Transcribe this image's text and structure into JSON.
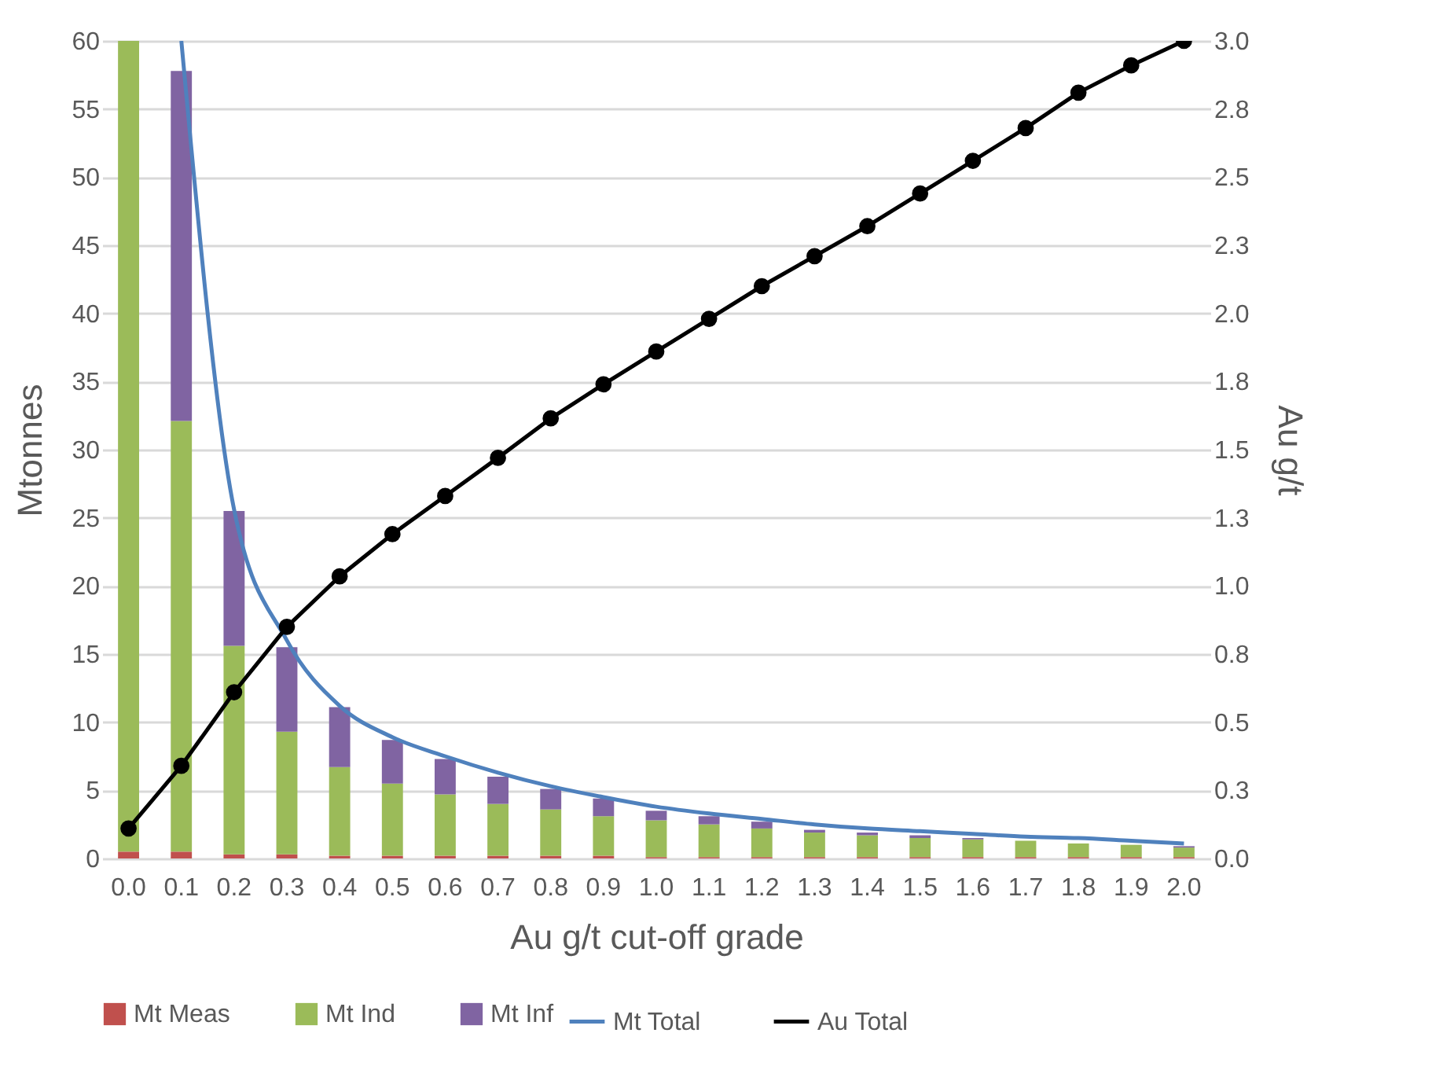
{
  "chart_data": {
    "type": "bar",
    "stacked": true,
    "xlabel": "Au g/t cut-off grade",
    "ylabel": "Mtonnes",
    "y2label": "Au g/t",
    "legend": "bottom",
    "grid": "y",
    "categories": [
      "0.0",
      "0.1",
      "0.2",
      "0.3",
      "0.4",
      "0.5",
      "0.6",
      "0.7",
      "0.8",
      "0.9",
      "1.0",
      "1.1",
      "1.2",
      "1.3",
      "1.4",
      "1.5",
      "1.6",
      "1.7",
      "1.8",
      "1.9",
      "2.0"
    ],
    "ylim": [
      0,
      60
    ],
    "yticks": [
      0,
      5,
      10,
      15,
      20,
      25,
      30,
      35,
      40,
      45,
      50,
      55,
      60
    ],
    "y2lim": [
      0,
      3
    ],
    "y2ticks": [
      {
        "value": 0,
        "label": "0.0"
      },
      {
        "value": 0.25,
        "label": "0.3"
      },
      {
        "value": 0.5,
        "label": "0.5"
      },
      {
        "value": 0.75,
        "label": "0.8"
      },
      {
        "value": 1,
        "label": "1.0"
      },
      {
        "value": 1.25,
        "label": "1.3"
      },
      {
        "value": 1.5,
        "label": "1.5"
      },
      {
        "value": 1.75,
        "label": "1.8"
      },
      {
        "value": 2,
        "label": "2.0"
      },
      {
        "value": 2.25,
        "label": "2.3"
      },
      {
        "value": 2.5,
        "label": "2.5"
      },
      {
        "value": 2.75,
        "label": "2.8"
      },
      {
        "value": 3,
        "label": "3.0"
      }
    ],
    "series": [
      {
        "name": "Mt Meas",
        "color": "#c0504d",
        "values": [
          0.5,
          0.5,
          0.3,
          0.3,
          0.2,
          0.2,
          0.2,
          0.2,
          0.2,
          0.2,
          0.1,
          0.1,
          0.1,
          0.1,
          0.1,
          0.1,
          0.1,
          0.1,
          0.1,
          0.1,
          0.1
        ]
      },
      {
        "name": "Mt Ind",
        "color": "#9bbb59",
        "values": [
          59.5,
          31.6,
          15.3,
          9.0,
          6.5,
          5.3,
          4.5,
          3.8,
          3.4,
          2.9,
          2.7,
          2.4,
          2.1,
          1.8,
          1.6,
          1.4,
          1.3,
          1.2,
          1.0,
          0.9,
          0.7
        ]
      },
      {
        "name": "Mt Inf",
        "color": "#8064a2",
        "values": [
          null,
          25.7,
          9.9,
          6.2,
          4.4,
          3.2,
          2.6,
          2.0,
          1.5,
          1.3,
          0.7,
          0.6,
          0.5,
          0.2,
          0.2,
          0.2,
          0.1,
          null,
          null,
          null,
          0.1
        ]
      },
      {
        "name": "Mt Total",
        "type": "line",
        "color": "#4f81bd",
        "values": [
          null,
          60,
          25.6,
          16,
          11.2,
          8.9,
          7.5,
          6.3,
          5.3,
          4.5,
          3.8,
          3.3,
          2.9,
          2.5,
          2.2,
          2.0,
          1.8,
          1.6,
          1.5,
          1.3,
          1.1
        ]
      },
      {
        "name": "Au Total",
        "type": "line",
        "axis": "y2",
        "marker": "circle",
        "color": "#000000",
        "values": [
          0.11,
          0.34,
          0.61,
          0.85,
          1.035,
          1.19,
          1.33,
          1.47,
          1.615,
          1.74,
          1.86,
          1.98,
          2.1,
          2.21,
          2.32,
          2.44,
          2.56,
          2.68,
          2.81,
          2.91,
          3.0
        ]
      }
    ]
  }
}
